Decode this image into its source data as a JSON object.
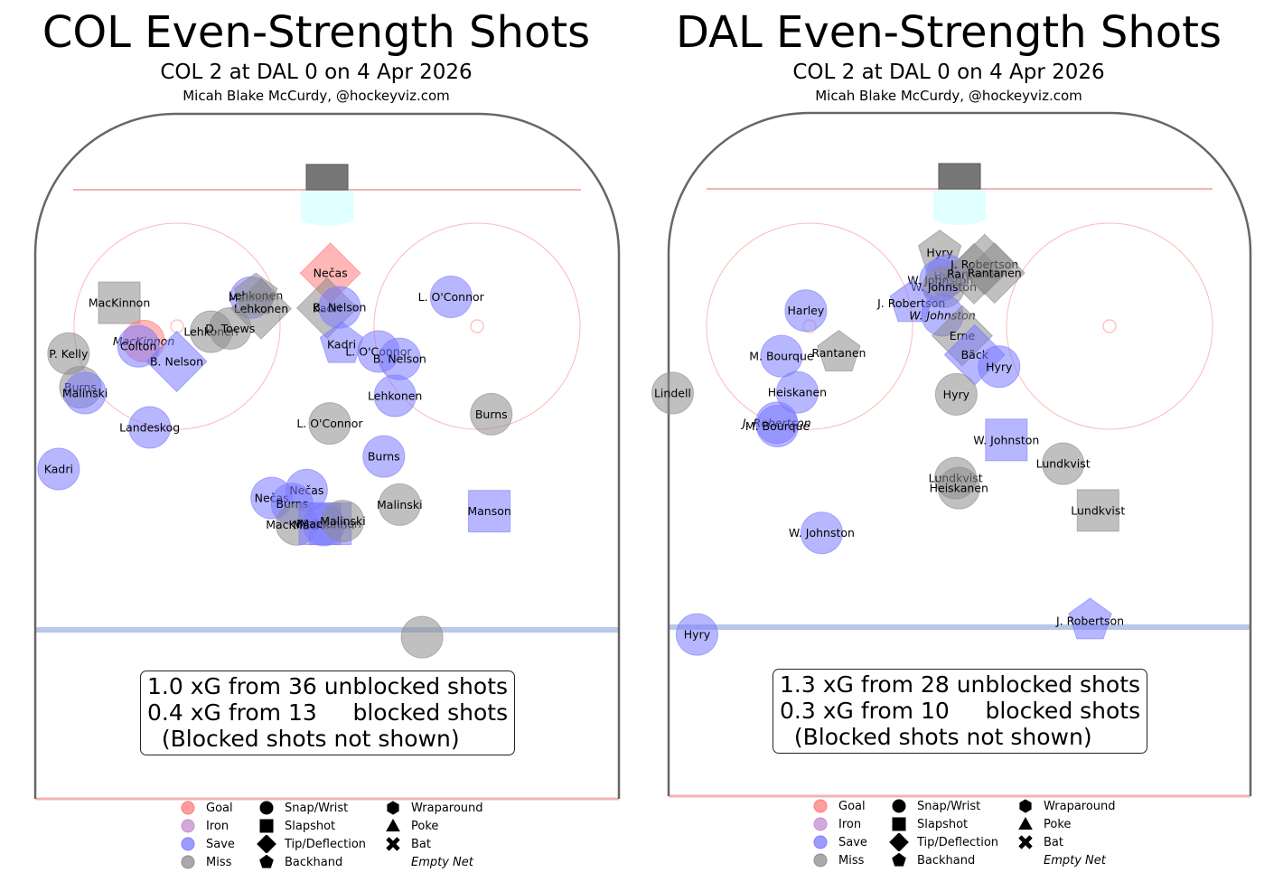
{
  "colors": {
    "goal": "#ff7b7b",
    "iron": "#c58bd1",
    "save": "#7b7bff",
    "miss": "#8c8c8c",
    "net": "#777777",
    "crease": "#e0ffff",
    "goal_line": "#f2b3b3",
    "blue_line": "#b8c8e6",
    "faceoff": "#ffb9b9",
    "boards": "#666666"
  },
  "chart_data": [
    {
      "type": "scatter",
      "title": "COL Even-Strength Shots",
      "subtitle": "COL 2 at DAL 0 on 4 Apr 2026",
      "credit": "Micah Blake McCurdy, @hockeyviz.com",
      "summary": [
        "1.0 xG from 36 unblocked shots",
        "0.4 xG from 13     blocked shots",
        "  (Blocked shots not shown)"
      ],
      "shots": [
        {
          "x": -31.5,
          "y": 75.2,
          "name": "MacKinnon",
          "result": "miss",
          "type": "slapshot"
        },
        {
          "x": -27.8,
          "y": 69.4,
          "name": "MacKinnon",
          "result": "goal",
          "type": "wrist",
          "empty_net": true
        },
        {
          "x": -28.6,
          "y": 68.6,
          "name": "Colton",
          "result": "save",
          "type": "wrist"
        },
        {
          "x": -11.5,
          "y": 76.0,
          "name": "Malinski",
          "result": "save",
          "type": "wrist"
        },
        {
          "x": -10.8,
          "y": 76.3,
          "name": "Lehkonen",
          "result": "miss",
          "type": "backhand"
        },
        {
          "x": -10.0,
          "y": 74.3,
          "name": "Lehkonen",
          "result": "miss",
          "type": "tip"
        },
        {
          "x": -17.6,
          "y": 70.8,
          "name": "Lehkonen",
          "result": "miss",
          "type": "wrist"
        },
        {
          "x": -14.7,
          "y": 71.3,
          "name": "D. Toews",
          "result": "miss",
          "type": "wrist"
        },
        {
          "x": -22.8,
          "y": 66.3,
          "name": "B. Nelson",
          "result": "save",
          "type": "tip"
        },
        {
          "x": -39.2,
          "y": 67.5,
          "name": "P. Kelly",
          "result": "miss",
          "type": "wrist"
        },
        {
          "x": -37.4,
          "y": 62.4,
          "name": "Burns",
          "result": "miss",
          "type": "wrist"
        },
        {
          "x": -36.7,
          "y": 61.5,
          "name": "Malinski",
          "result": "save",
          "type": "wrist"
        },
        {
          "x": -26.9,
          "y": 56.3,
          "name": "Landeskog",
          "result": "save",
          "type": "wrist"
        },
        {
          "x": -40.7,
          "y": 50.0,
          "name": "Kadri",
          "result": "save",
          "type": "wrist"
        },
        {
          "x": 0.5,
          "y": 79.7,
          "name": "Nečas",
          "result": "goal",
          "type": "tip"
        },
        {
          "x": 0.0,
          "y": 74.4,
          "name": "Kadri",
          "result": "miss",
          "type": "tip"
        },
        {
          "x": 1.9,
          "y": 74.5,
          "name": "B. Nelson",
          "result": "save",
          "type": "wrist"
        },
        {
          "x": 18.8,
          "y": 76.1,
          "name": "L. O'Connor",
          "result": "save",
          "type": "wrist"
        },
        {
          "x": 2.2,
          "y": 68.9,
          "name": "Kadri",
          "result": "save",
          "type": "backhand"
        },
        {
          "x": 7.8,
          "y": 67.8,
          "name": "L. O'Connor",
          "result": "save",
          "type": "wrist"
        },
        {
          "x": 11.0,
          "y": 66.7,
          "name": "B. Nelson",
          "result": "save",
          "type": "wrist"
        },
        {
          "x": 10.3,
          "y": 61.1,
          "name": "Lehkonen",
          "result": "save",
          "type": "wrist"
        },
        {
          "x": 0.4,
          "y": 56.9,
          "name": "L. O'Connor",
          "result": "miss",
          "type": "wrist"
        },
        {
          "x": 24.9,
          "y": 58.3,
          "name": "Burns",
          "result": "miss",
          "type": "wrist"
        },
        {
          "x": 8.6,
          "y": 51.9,
          "name": "Burns",
          "result": "save",
          "type": "wrist"
        },
        {
          "x": 11.0,
          "y": 44.6,
          "name": "Malinski",
          "result": "miss",
          "type": "wrist"
        },
        {
          "x": 24.6,
          "y": 43.6,
          "name": "Manson",
          "result": "save",
          "type": "slapshot"
        },
        {
          "x": -8.4,
          "y": 45.6,
          "name": "Nečas",
          "result": "save",
          "type": "wrist"
        },
        {
          "x": -3.1,
          "y": 46.8,
          "name": "Nečas",
          "result": "save",
          "type": "wrist"
        },
        {
          "x": -5.3,
          "y": 44.7,
          "name": "Burns",
          "result": "save",
          "type": "wrist"
        },
        {
          "x": -4.6,
          "y": 41.6,
          "name": "MacKinnon",
          "result": "miss",
          "type": "wrist"
        },
        {
          "x": -1.1,
          "y": 41.7,
          "name": "Malinski",
          "result": "save",
          "type": "slapshot"
        },
        {
          "x": -0.5,
          "y": 41.5,
          "name": "MacKinnon",
          "result": "save",
          "type": "wrist"
        },
        {
          "x": 0.5,
          "y": 41.7,
          "name": "MacKinnon",
          "result": "save",
          "type": "slapshot"
        },
        {
          "x": 2.4,
          "y": 42.1,
          "name": "Malinski",
          "result": "miss",
          "type": "wrist"
        },
        {
          "x": 14.4,
          "y": 24.5,
          "name": "",
          "result": "miss",
          "type": "wrist"
        }
      ]
    },
    {
      "type": "scatter",
      "title": "DAL Even-Strength Shots",
      "subtitle": "COL 2 at DAL 0 on 4 Apr 2026",
      "credit": "Micah Blake McCurdy, @hockeyviz.com",
      "summary": [
        "1.3 xG from 28 unblocked shots",
        "0.3 xG from 10     blocked shots",
        "  (Blocked shots not shown)"
      ],
      "shots": [
        {
          "x": -3.0,
          "y": 82.4,
          "name": "Hyry",
          "result": "miss",
          "type": "backhand"
        },
        {
          "x": -1.9,
          "y": 78.9,
          "name": "Hyry",
          "result": "save",
          "type": "wrist"
        },
        {
          "x": -2.9,
          "y": 78.2,
          "name": "W. Johnston",
          "result": "save",
          "type": "wrist"
        },
        {
          "x": -2.4,
          "y": 77.2,
          "name": "W. Johnston",
          "result": "miss",
          "type": "wrist"
        },
        {
          "x": 2.2,
          "y": 79.2,
          "name": "Rantanen",
          "result": "miss",
          "type": "tip"
        },
        {
          "x": 3.8,
          "y": 80.6,
          "name": "J. Robertson",
          "result": "miss",
          "type": "tip"
        },
        {
          "x": 5.3,
          "y": 79.3,
          "name": "Rantanen",
          "result": "miss",
          "type": "tip"
        },
        {
          "x": -23.3,
          "y": 73.6,
          "name": "Harley",
          "result": "save",
          "type": "wrist"
        },
        {
          "x": -7.3,
          "y": 74.7,
          "name": "J. Robertson",
          "result": "save",
          "type": "backhand"
        },
        {
          "x": -2.6,
          "y": 72.9,
          "name": "W. Johnston",
          "result": "save",
          "type": "wrist",
          "empty_net": true
        },
        {
          "x": -18.3,
          "y": 67.2,
          "name": "Rantanen",
          "result": "miss",
          "type": "backhand"
        },
        {
          "x": -27.0,
          "y": 66.7,
          "name": "M. Bourque",
          "result": "save",
          "type": "wrist"
        },
        {
          "x": 0.4,
          "y": 69.8,
          "name": "Erne",
          "result": "miss",
          "type": "tip"
        },
        {
          "x": 2.3,
          "y": 66.9,
          "name": "Bäck",
          "result": "save",
          "type": "tip"
        },
        {
          "x": 6.0,
          "y": 65.1,
          "name": "Hyry",
          "result": "save",
          "type": "wrist"
        },
        {
          "x": -43.5,
          "y": 61.1,
          "name": "Lindell",
          "result": "miss",
          "type": "wrist"
        },
        {
          "x": -24.6,
          "y": 61.2,
          "name": "Heiskanen",
          "result": "save",
          "type": "wrist"
        },
        {
          "x": -0.5,
          "y": 60.9,
          "name": "Hyry",
          "result": "miss",
          "type": "wrist"
        },
        {
          "x": -27.7,
          "y": 56.6,
          "name": "J. Robertson",
          "result": "save",
          "type": "wrist",
          "empty_net": true
        },
        {
          "x": -27.6,
          "y": 56.1,
          "name": "M. Bourque",
          "result": "save",
          "type": "wrist"
        },
        {
          "x": 7.1,
          "y": 54.0,
          "name": "W. Johnston",
          "result": "save",
          "type": "slapshot"
        },
        {
          "x": 15.7,
          "y": 50.4,
          "name": "Lundkvist",
          "result": "miss",
          "type": "wrist"
        },
        {
          "x": -0.6,
          "y": 48.2,
          "name": "Lundkvist",
          "result": "miss",
          "type": "wrist"
        },
        {
          "x": -0.1,
          "y": 46.7,
          "name": "Heiskanen",
          "result": "miss",
          "type": "wrist"
        },
        {
          "x": 21.0,
          "y": 43.3,
          "name": "Lundkvist",
          "result": "miss",
          "type": "slapshot"
        },
        {
          "x": -20.9,
          "y": 39.9,
          "name": "W. Johnston",
          "result": "save",
          "type": "wrist"
        },
        {
          "x": -39.8,
          "y": 24.5,
          "name": "Hyry",
          "result": "save",
          "type": "wrist"
        },
        {
          "x": 19.8,
          "y": 26.6,
          "name": "J. Robertson",
          "result": "save",
          "type": "backhand"
        }
      ]
    }
  ],
  "legend": {
    "results": [
      "Goal",
      "Iron",
      "Save",
      "Miss"
    ],
    "types": [
      "Snap/Wrist",
      "Slapshot",
      "Tip/Deflection",
      "Backhand"
    ],
    "types2": [
      "Wraparound",
      "Poke",
      "Bat"
    ],
    "empty_net": "Empty Net"
  }
}
